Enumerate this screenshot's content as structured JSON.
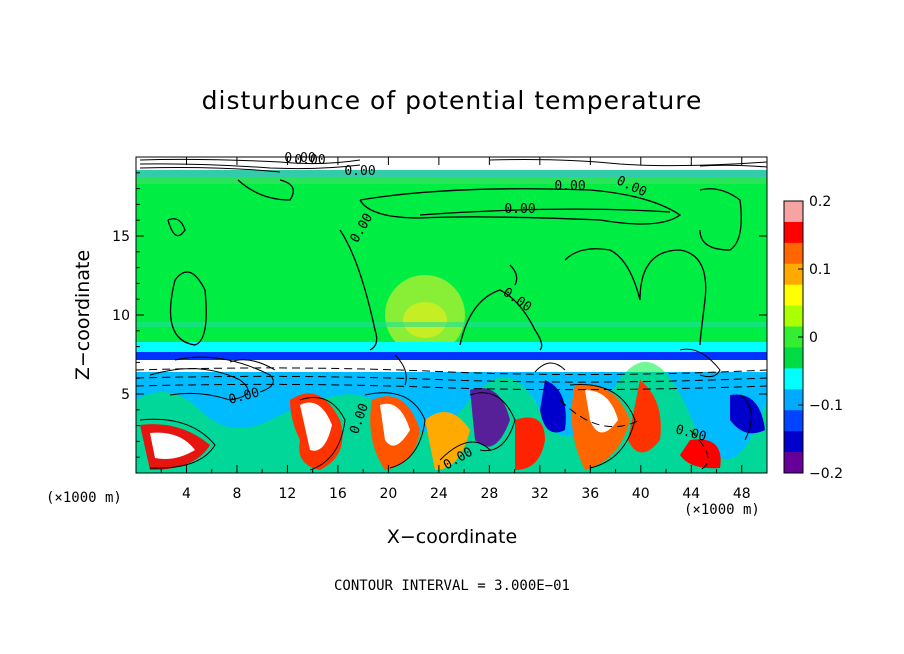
{
  "chart_data": {
    "type": "heatmap",
    "title": "disturbunce of potential temperature",
    "xlabel": "X−coordinate",
    "ylabel": "Z−coordinate",
    "x_unit_left": "(×1000 m)",
    "x_unit_right": "(×1000 m)",
    "xlim": [
      0,
      50
    ],
    "ylim": [
      0,
      20
    ],
    "x_ticks": [
      4,
      8,
      12,
      16,
      20,
      24,
      28,
      32,
      36,
      40,
      44,
      48
    ],
    "y_ticks": [
      5,
      10,
      15
    ],
    "colorbar": {
      "range": [
        -0.2,
        0.2
      ],
      "tick_values": [
        0.2,
        0.1,
        0,
        -0.1,
        -0.2
      ],
      "tick_labels": [
        "0.2",
        "0.1",
        "0",
        "−0.1",
        "−0.2"
      ],
      "colors": [
        "#f7a3a3",
        "#ff0000",
        "#ff6600",
        "#ffaa00",
        "#ffff00",
        "#aaff00",
        "#33ee33",
        "#00dd44",
        "#00ffff",
        "#00aaff",
        "#0044ff",
        "#0000cc",
        "#660099"
      ]
    },
    "contour_labels": [
      "0.00",
      "0.00",
      "0.00",
      "0.00",
      "0.00",
      "0.00",
      "0.00",
      "0.00",
      "0.00",
      "0.00",
      "0.00",
      "0.00"
    ],
    "contour_interval_text": "CONTOUR INTERVAL = 3.000E−01",
    "background_color": "#00ee44"
  }
}
